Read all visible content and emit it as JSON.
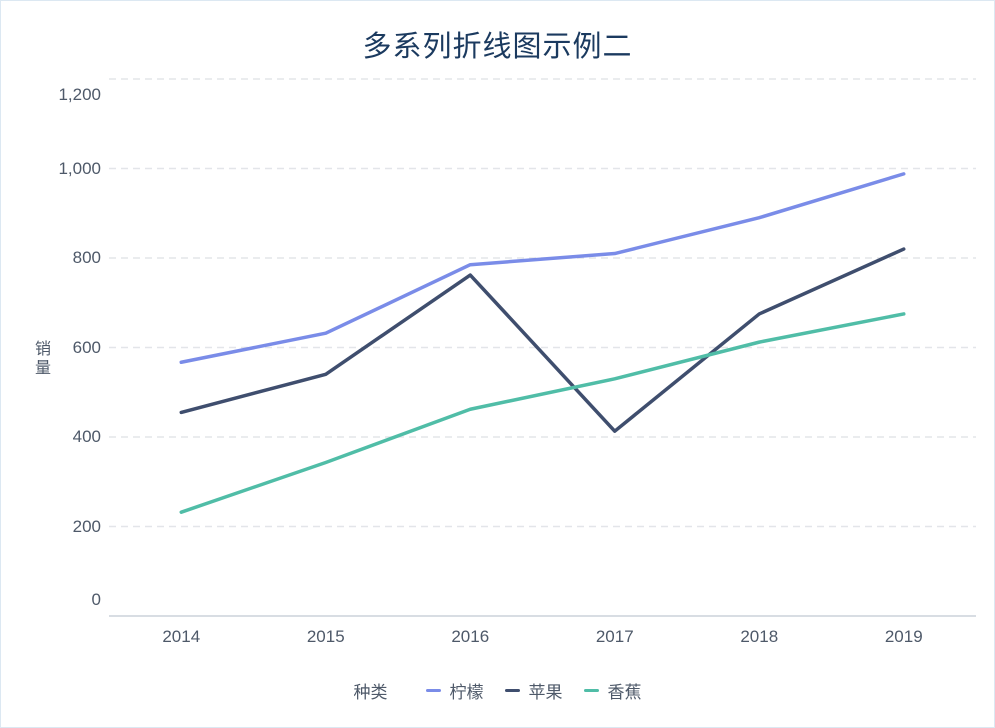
{
  "chart_data": {
    "type": "line",
    "title": "多系列折线图示例二",
    "ylabel": "销量",
    "legend_title": "种类",
    "legend_position": "bottom",
    "grid": "horizontal dashed",
    "x": [
      "2014",
      "2015",
      "2016",
      "2017",
      "2018",
      "2019"
    ],
    "series": [
      {
        "name": "柠檬",
        "color": "#7a8ce8",
        "values": [
          567,
          632,
          785,
          810,
          890,
          988
        ]
      },
      {
        "name": "苹果",
        "color": "#3f4e6e",
        "values": [
          455,
          540,
          762,
          413,
          675,
          820
        ]
      },
      {
        "name": "香蕉",
        "color": "#50bda7",
        "values": [
          232,
          343,
          462,
          530,
          612,
          675
        ]
      }
    ],
    "ylim": [
      0,
      1200
    ],
    "ytick_step": 200,
    "ytick_labels": [
      "0",
      "200",
      "400",
      "600",
      "800",
      "1,000",
      "1,200"
    ]
  },
  "colors": {
    "title_text": "#1b3a5f",
    "axis_text": "#4e5969",
    "grid_line": "#e3e5e9",
    "axis_line": "#d8dde3",
    "background": "#ffffff",
    "panel_border": "#dce8f2"
  }
}
